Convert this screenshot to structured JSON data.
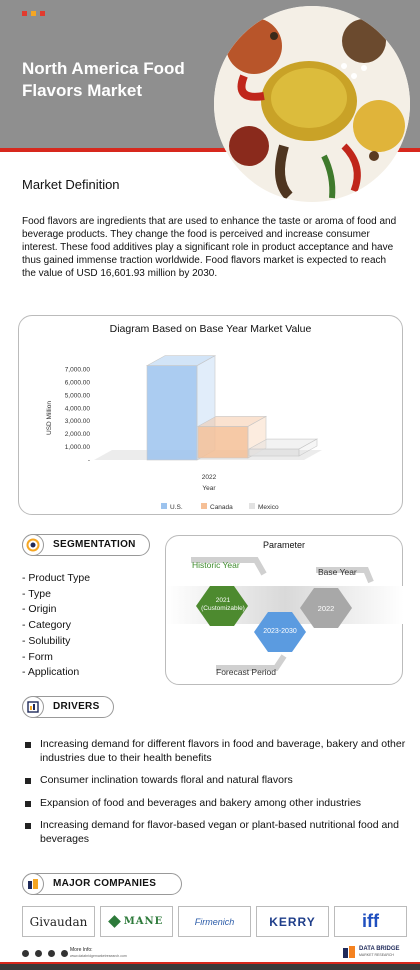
{
  "header": {
    "title": "North America Food Flavors Market",
    "dot_colors": [
      "#e23b2e",
      "#f5a623",
      "#e23b2e"
    ]
  },
  "definition": {
    "heading": "Market Definition",
    "text": "Food flavors are ingredients that are used to enhance the taste or aroma of food and beverage products. They change the food is perceived and increase consumer interest. These food additives play a significant role in product acceptance and have thus gained immense traction worldwide. Food flavors market is expected to reach the value of USD 16,601.93 million by 2030."
  },
  "chart_data": {
    "type": "bar",
    "title": "Diagram Based on Base Year Market Value",
    "ylabel": "USD Million",
    "xlabel": "Year",
    "ylim": [
      0,
      8000
    ],
    "y_ticks": [
      "7,000.00",
      "6,000.00",
      "5,000.00",
      "4,000.00",
      "3,000.00",
      "2,000.00",
      "1,000.00",
      "-"
    ],
    "categories": [
      "2022"
    ],
    "series": [
      {
        "name": "U.S.",
        "values": [
          7300
        ],
        "color": "#9cc3ee"
      },
      {
        "name": "Canada",
        "values": [
          2600
        ],
        "color": "#f5bf96"
      },
      {
        "name": "Mexico",
        "values": [
          850
        ],
        "color": "#e2e2e2"
      }
    ],
    "legend": "bottom"
  },
  "segmentation": {
    "label": "SEGMENTATION",
    "items": [
      "- Product Type",
      "- Type",
      "- Origin",
      "- Category",
      "- Solubility",
      "- Form",
      "- Application"
    ]
  },
  "parameter": {
    "title": "Parameter",
    "historic_label": "Historic Year",
    "historic_value": "2021 (Customizable)",
    "forecast_label": "Forecast Period",
    "forecast_value": "2023-2030",
    "base_label": "Base Year",
    "base_value": "2022"
  },
  "drivers": {
    "label": "DRIVERS",
    "items": [
      "Increasing demand for different flavors in food and baverage, bakery and other industries due to their health benefits",
      "Consumer inclination towards floral and natural flavors",
      "Expansion of food and beverages and bakery among other industries",
      "Increasing demand for flavor-based vegan or plant-based nutritional food and beverages"
    ]
  },
  "companies": {
    "label": "MAJOR COMPANIES",
    "logos": [
      "Givaudan",
      "MANE",
      "Firmenich",
      "KERRY",
      "iff"
    ]
  },
  "footer": {
    "more_info": "More Info:",
    "website": "www.databridgemarketresearch.com",
    "brand_line1": "DATA BRIDGE",
    "brand_line2": "MARKET RESEARCH"
  }
}
